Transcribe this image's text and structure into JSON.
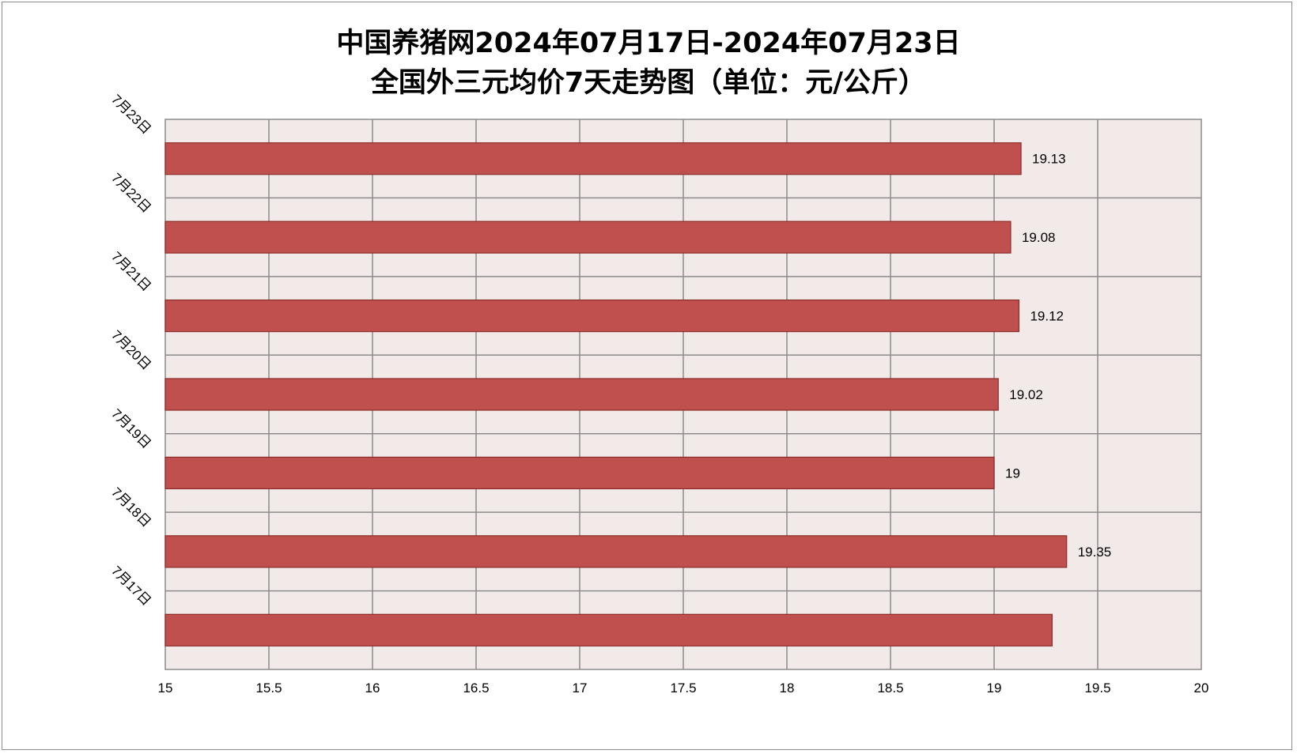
{
  "chart_data": {
    "type": "bar",
    "orientation": "horizontal",
    "title_line1": "中国养猪网2024年07月17日-2024年07月23日",
    "title_line2": "全国外三元均价7天走势图（单位：元/公斤）",
    "categories": [
      "7月23日",
      "7月22日",
      "7月21日",
      "7月20日",
      "7月19日",
      "7月18日",
      "7月17日"
    ],
    "values": [
      19.13,
      19.08,
      19.12,
      19.02,
      19,
      19.35,
      19.28
    ],
    "data_labels": [
      "19.13",
      "19.08",
      "19.12",
      "19.02",
      "19",
      "19.35",
      ""
    ],
    "x_ticks": [
      "15",
      "15.5",
      "16",
      "16.5",
      "17",
      "17.5",
      "18",
      "18.5",
      "19",
      "19.5",
      "20"
    ],
    "xlim": [
      15,
      20
    ],
    "grid": true,
    "colors": {
      "bar_fill": "#c0504d",
      "bar_stroke": "#8c2d2a",
      "plot_bg": "#f2e9e9",
      "grid": "#8c8c8c"
    }
  }
}
